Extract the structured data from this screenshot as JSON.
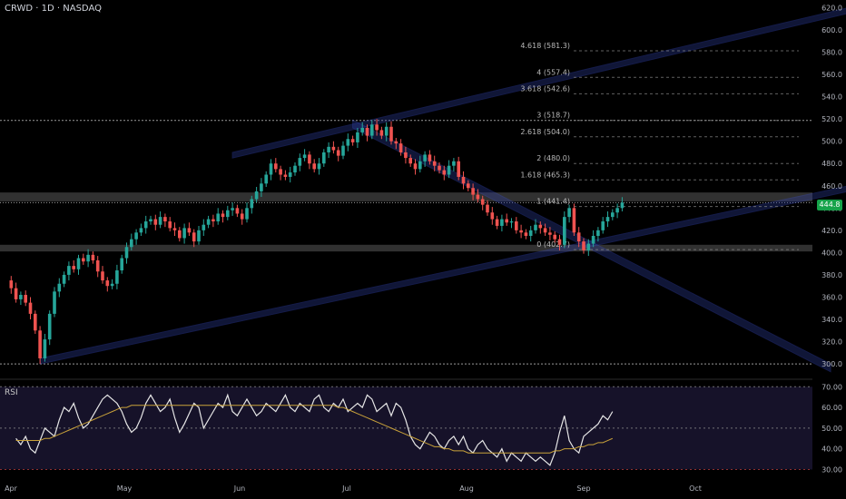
{
  "header": {
    "title": "CRWD · 1D · NASDAQ"
  },
  "colors": {
    "up": "#26a69a",
    "down": "#ef5350",
    "channel": "#2f3f9e",
    "zone": "#5a5a5a",
    "rsi": "#e6e6e6",
    "rsi_ma": "#c9a23a",
    "fib": "#8a8a8a",
    "badge": "#16a34a"
  },
  "chart_data": [
    {
      "type": "candlestick",
      "title": "CRWD · 1D · NASDAQ",
      "x_tick_labels": [
        "Apr",
        "May",
        "Jun",
        "Jul",
        "Aug",
        "Sep",
        "Oct"
      ],
      "y_tick_labels": [
        "620.0",
        "600.0",
        "580.0",
        "560.0",
        "540.0",
        "520.0",
        "500.0",
        "480.0",
        "460.0",
        "440.0",
        "420.0",
        "400.0",
        "380.0",
        "360.0",
        "340.0",
        "320.0",
        "300.0"
      ],
      "ylim": [
        296,
        622
      ],
      "last_price": "444.8",
      "close_series": [
        375,
        368,
        358,
        362,
        355,
        345,
        330,
        305,
        322,
        345,
        365,
        372,
        380,
        388,
        385,
        395,
        392,
        398,
        393,
        383,
        375,
        370,
        372,
        384,
        395,
        405,
        412,
        418,
        422,
        428,
        430,
        425,
        432,
        428,
        422,
        420,
        413,
        422,
        418,
        410,
        420,
        425,
        430,
        428,
        435,
        432,
        438,
        440,
        435,
        430,
        440,
        448,
        455,
        462,
        470,
        480,
        475,
        470,
        468,
        472,
        478,
        485,
        488,
        480,
        475,
        480,
        490,
        495,
        492,
        487,
        496,
        502,
        499,
        508,
        512,
        505,
        515,
        510,
        505,
        513,
        500,
        498,
        490,
        485,
        480,
        475,
        482,
        488,
        482,
        478,
        474,
        470,
        478,
        482,
        468,
        462,
        458,
        452,
        448,
        443,
        436,
        430,
        424,
        430,
        427,
        428,
        420,
        418,
        415,
        420,
        425,
        422,
        418,
        416,
        412,
        407,
        432,
        440,
        418,
        410,
        402,
        408,
        415,
        420,
        428,
        432,
        436,
        440,
        444.8
      ],
      "fib_levels": [
        {
          "label": "4.618 (581.3)",
          "value": 581.3
        },
        {
          "label": "4 (557.4)",
          "value": 557.4
        },
        {
          "label": "3.618 (542.6)",
          "value": 542.6
        },
        {
          "label": "3 (518.7)",
          "value": 518.7
        },
        {
          "label": "2.618 (504.0)",
          "value": 504.0
        },
        {
          "label": "2 (480.0)",
          "value": 480.0
        },
        {
          "label": "1.618 (465.3)",
          "value": 465.3
        },
        {
          "label": "1 (441.4)",
          "value": 441.4
        },
        {
          "label": "0 (402.7)",
          "value": 402.7
        }
      ]
    },
    {
      "type": "line",
      "title": "RSI",
      "ylim": [
        28,
        71
      ],
      "y_tick_labels": [
        "70.00",
        "60.00",
        "50.00",
        "40.00",
        "30.00"
      ],
      "series": [
        {
          "values": [
            45,
            42,
            46,
            40,
            38,
            44,
            50,
            48,
            46,
            54,
            60,
            58,
            62,
            55,
            50,
            52,
            56,
            60,
            64,
            66,
            64,
            62,
            58,
            52,
            48,
            50,
            55,
            62,
            66,
            62,
            58,
            60,
            64,
            55,
            48,
            52,
            57,
            62,
            60,
            50,
            54,
            58,
            62,
            60,
            66,
            58,
            56,
            60,
            64,
            60,
            56,
            58,
            62,
            60,
            58,
            62,
            66,
            60,
            58,
            62,
            60,
            58,
            64,
            66,
            60,
            58,
            62,
            60,
            64,
            58,
            60,
            62,
            60,
            66,
            64,
            58,
            60,
            62,
            56,
            62,
            60,
            54,
            46,
            42,
            40,
            44,
            48,
            46,
            42,
            40,
            44,
            46,
            42,
            46,
            40,
            38,
            42,
            44,
            40,
            38,
            36,
            40,
            34,
            38,
            36,
            34,
            38,
            36,
            34,
            36,
            34,
            32,
            38,
            48,
            56,
            44,
            40,
            38,
            46,
            48,
            50,
            52,
            56,
            54,
            58
          ]
        },
        {
          "values": [
            44,
            44,
            44,
            44,
            44,
            44,
            45,
            45,
            46,
            47,
            48,
            49,
            50,
            51,
            52,
            53,
            54,
            55,
            56,
            57,
            58,
            59,
            60,
            60,
            61,
            61,
            61,
            61,
            61,
            61,
            61,
            61,
            61,
            61,
            61,
            61,
            61,
            61,
            61,
            61,
            61,
            61,
            61,
            61,
            61,
            61,
            61,
            61,
            61,
            61,
            61,
            61,
            61,
            61,
            61,
            61,
            61,
            61,
            61,
            61,
            61,
            61,
            61,
            61,
            61,
            61,
            61,
            60,
            60,
            59,
            58,
            57,
            56,
            55,
            54,
            53,
            52,
            51,
            50,
            49,
            48,
            47,
            46,
            45,
            44,
            43,
            42,
            41,
            41,
            40,
            40,
            39,
            39,
            39,
            38,
            38,
            38,
            38,
            38,
            38,
            38,
            38,
            38,
            38,
            38,
            38,
            38,
            38,
            38,
            38,
            38,
            38,
            39,
            39,
            40,
            40,
            40,
            41,
            41,
            42,
            42,
            43,
            43,
            44,
            45
          ]
        }
      ]
    }
  ]
}
